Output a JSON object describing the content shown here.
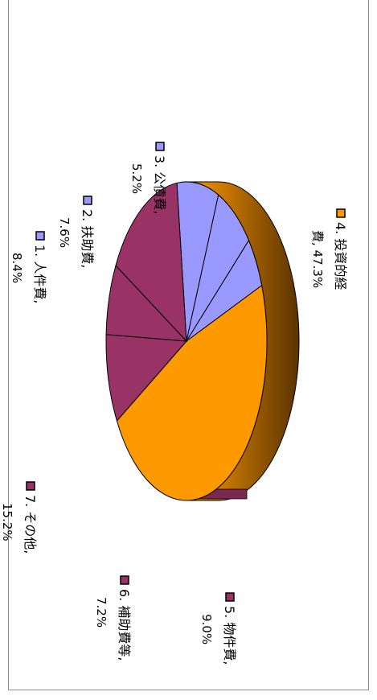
{
  "chart_data": {
    "type": "pie",
    "title": "",
    "rotation": "rotated 90deg clockwise (3D tilted pie)",
    "legend_placement": "inline labels",
    "slices": [
      {
        "name": "1. 人件費,",
        "percent_label": "8.4%",
        "value": 8.4,
        "color": "#9999ff"
      },
      {
        "name": "2. 扶助費,",
        "percent_label": "7.6%",
        "value": 7.6,
        "color": "#9999ff"
      },
      {
        "name": "3. 公債費,",
        "percent_label": "5.2%",
        "value": 5.2,
        "color": "#9999ff"
      },
      {
        "name": "4. 投資的経",
        "name2": "費, 47.3%",
        "value": 47.3,
        "color": "#ff9900"
      },
      {
        "name": "5. 物件費,",
        "percent_label": "9.0%",
        "value": 9.0,
        "color": "#993366"
      },
      {
        "name": "6. 補助費等,",
        "percent_label": "7.2%",
        "value": 7.2,
        "color": "#993366"
      },
      {
        "name": "7. その他,",
        "percent_label": "15.2%",
        "value": 15.2,
        "color": "#993366"
      }
    ]
  }
}
